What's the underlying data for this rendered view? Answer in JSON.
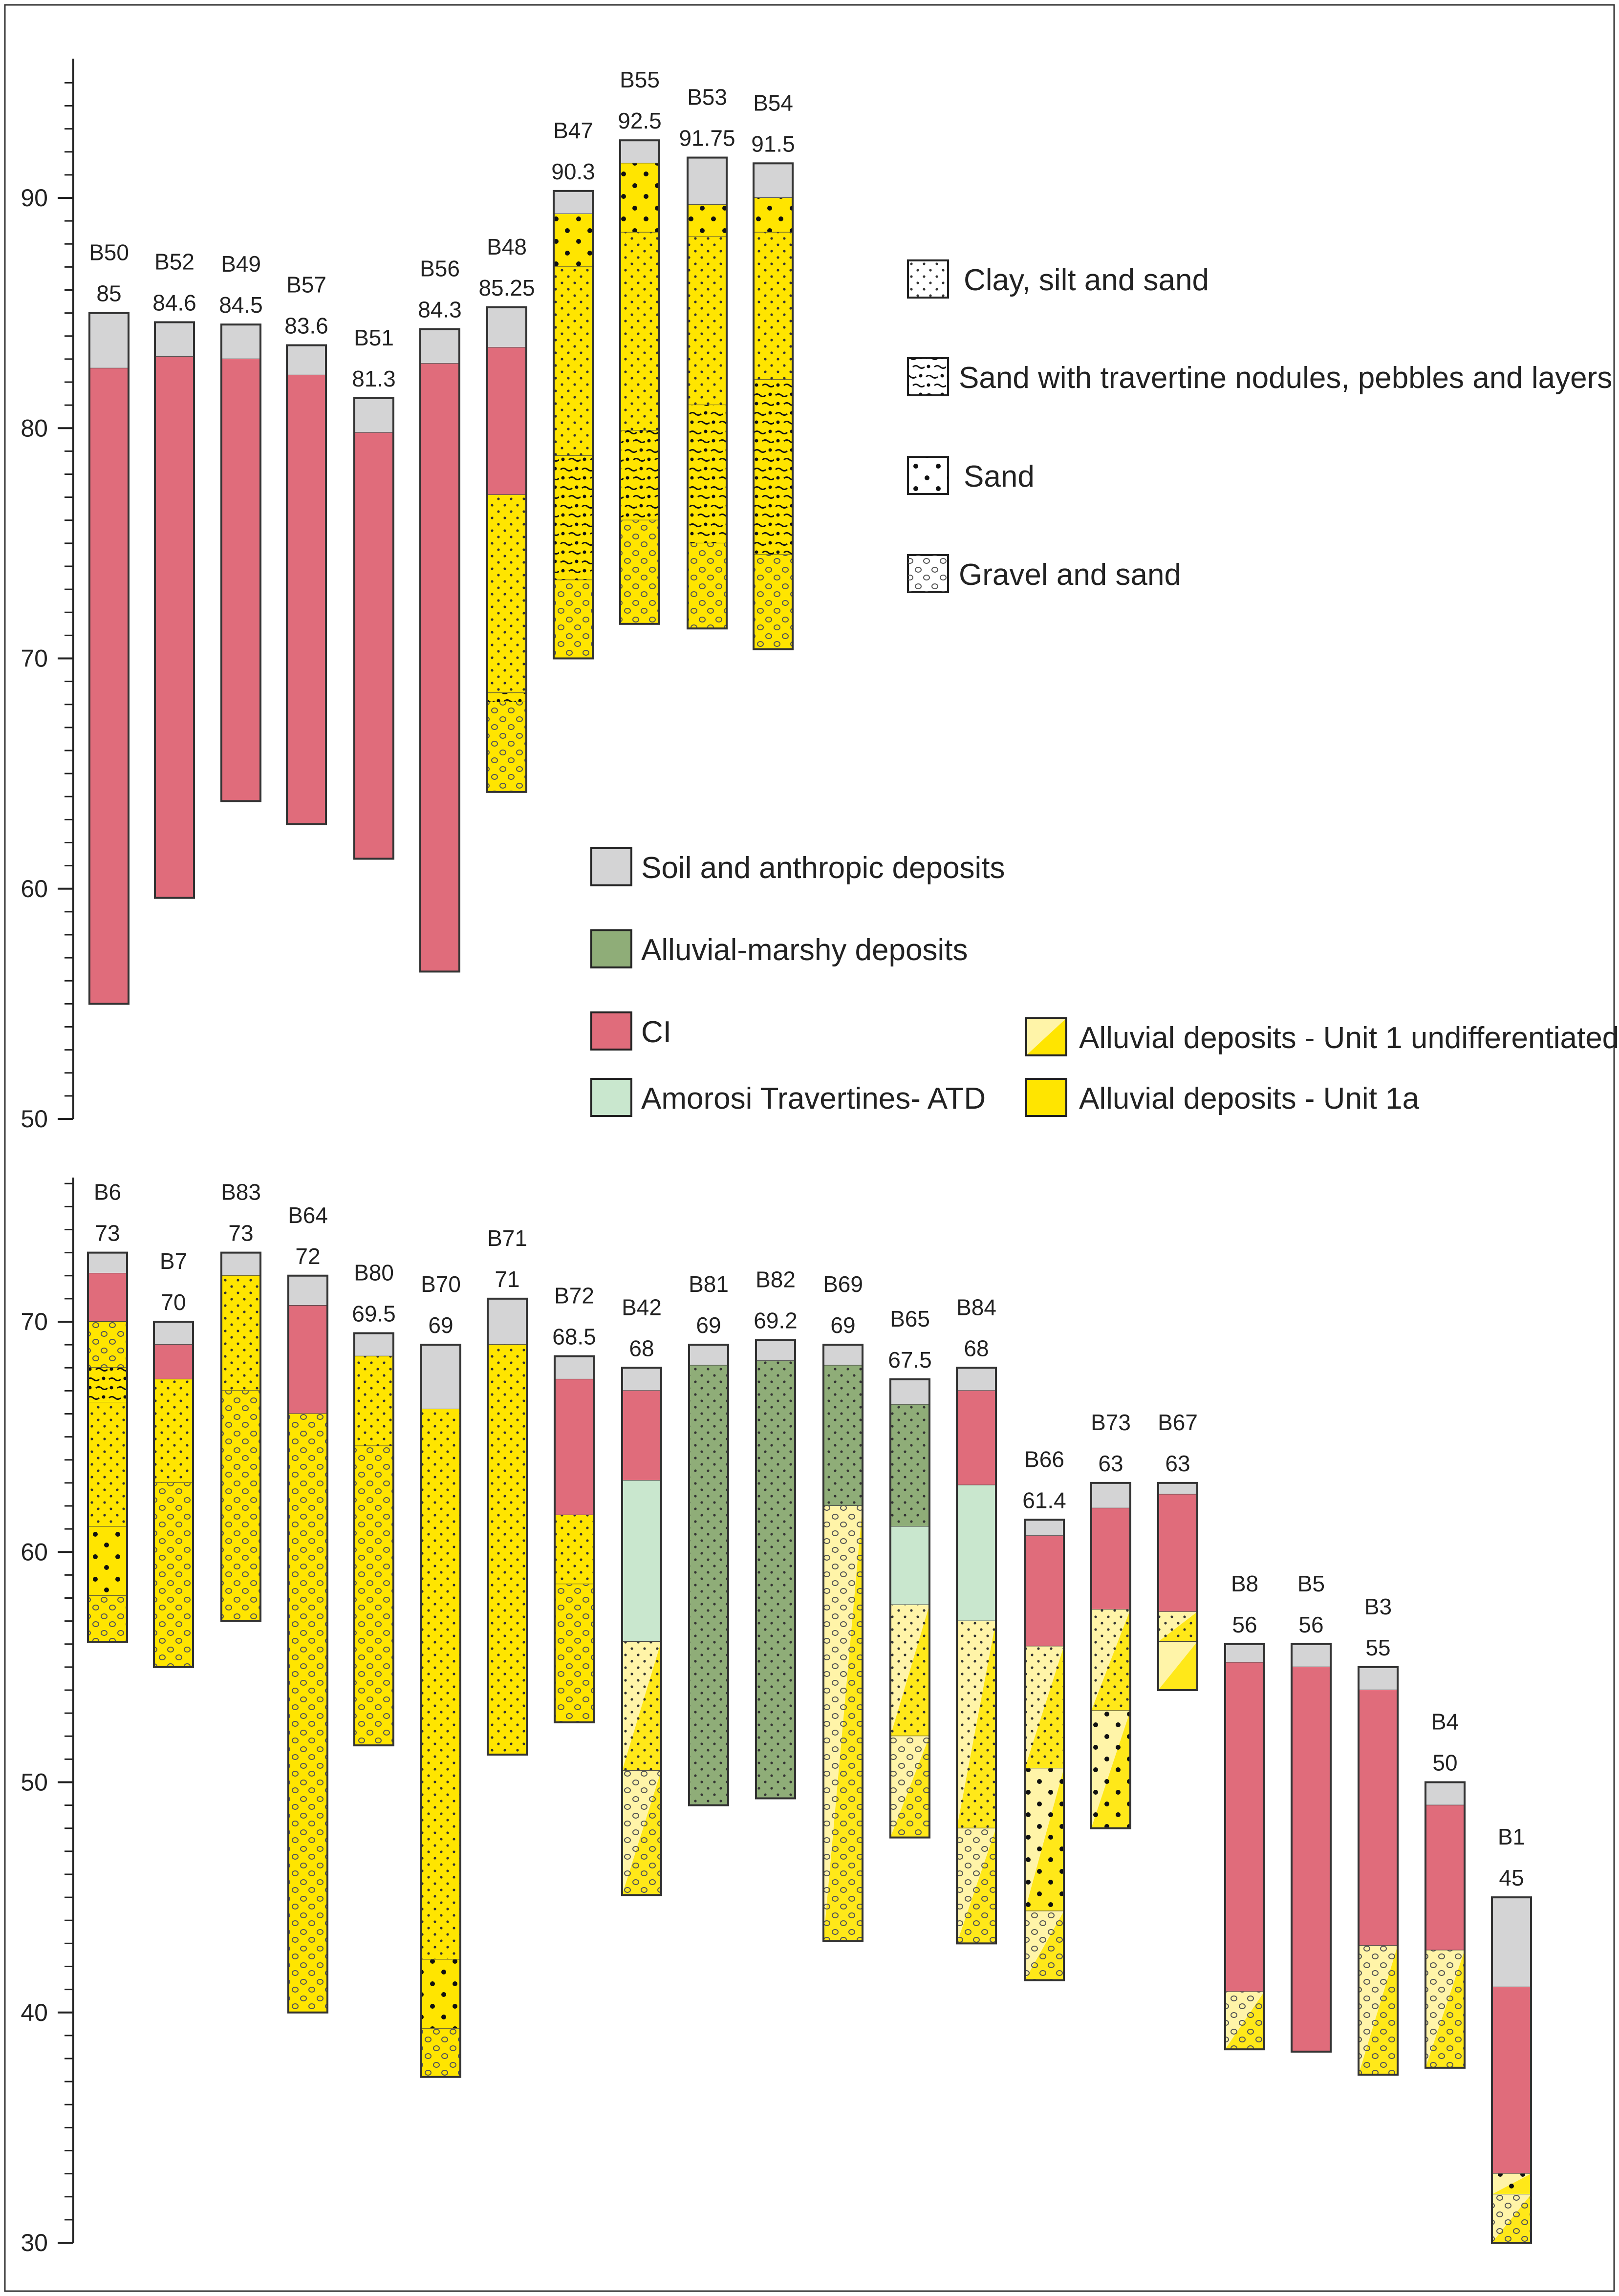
{
  "legend_lithology": [
    {
      "key": "clay",
      "label": "Clay, silt and sand"
    },
    {
      "key": "trav",
      "label": "Sand with travertine nodules, pebbles and layers"
    },
    {
      "key": "sand",
      "label": "Sand"
    },
    {
      "key": "gravel",
      "label": "Gravel and sand"
    }
  ],
  "legend_units": [
    {
      "key": "soil",
      "label": "Soil and anthropic deposits"
    },
    {
      "key": "marsh",
      "label": "Alluvial-marshy deposits"
    },
    {
      "key": "ci",
      "label": "CI"
    },
    {
      "key": "atd",
      "label": "Amorosi Travertines- ATD"
    },
    {
      "key": "undiff",
      "label": "Alluvial deposits - Unit 1 undifferentiated"
    },
    {
      "key": "u1a",
      "label": "Alluvial deposits - Unit 1a"
    }
  ],
  "colors": {
    "soil": "#d4d4d5",
    "ci": "#e06c7b",
    "marsh": "#8fad78",
    "atd": "#c9e7ce",
    "u1a": "#ffe500",
    "undiff": "#fff4a8",
    "frame": "#333333"
  },
  "chart_data": [
    {
      "id": "top-panel",
      "type": "stratigraphic-column",
      "ylim": [
        50,
        95
      ],
      "ytick_labels": [
        50,
        60,
        70,
        80,
        90
      ],
      "boreholes": [
        {
          "name": "B50",
          "elev": "85",
          "layers": [
            [
              85,
              82.6,
              "soil",
              ""
            ],
            [
              82.6,
              55,
              "ci",
              ""
            ]
          ]
        },
        {
          "name": "B52",
          "elev": "84.6",
          "layers": [
            [
              84.6,
              83.1,
              "soil",
              ""
            ],
            [
              83.1,
              59.6,
              "ci",
              ""
            ]
          ]
        },
        {
          "name": "B49",
          "elev": "84.5",
          "layers": [
            [
              84.5,
              83,
              "soil",
              ""
            ],
            [
              83,
              63.8,
              "ci",
              ""
            ]
          ]
        },
        {
          "name": "B57",
          "elev": "83.6",
          "layers": [
            [
              83.6,
              82.3,
              "soil",
              ""
            ],
            [
              82.3,
              62.8,
              "ci",
              ""
            ]
          ]
        },
        {
          "name": "B51",
          "elev": "81.3",
          "layers": [
            [
              81.3,
              79.8,
              "soil",
              ""
            ],
            [
              79.8,
              61.3,
              "ci",
              ""
            ]
          ]
        },
        {
          "name": "B56",
          "elev": "84.3",
          "layers": [
            [
              84.3,
              82.8,
              "soil",
              ""
            ],
            [
              82.8,
              56.4,
              "ci",
              ""
            ]
          ]
        },
        {
          "name": "B48",
          "elev": "85.25",
          "layers": [
            [
              85.25,
              83.5,
              "soil",
              ""
            ],
            [
              83.5,
              77.1,
              "ci",
              ""
            ],
            [
              77.1,
              68.5,
              "u1a",
              "clay"
            ],
            [
              68.5,
              68.1,
              "u1a",
              "trav"
            ],
            [
              68.1,
              64.2,
              "u1a",
              "gravel"
            ]
          ]
        },
        {
          "name": "B47",
          "elev": "90.3",
          "layers": [
            [
              90.3,
              89.3,
              "soil",
              ""
            ],
            [
              89.3,
              87,
              "u1a",
              "sand"
            ],
            [
              87,
              78.8,
              "u1a",
              "clay"
            ],
            [
              78.8,
              73.4,
              "u1a",
              "trav"
            ],
            [
              73.4,
              70,
              "u1a",
              "gravel"
            ]
          ]
        },
        {
          "name": "B55",
          "elev": "92.5",
          "layers": [
            [
              92.5,
              91.5,
              "soil",
              ""
            ],
            [
              91.5,
              88.5,
              "u1a",
              "sand"
            ],
            [
              88.5,
              79.9,
              "u1a",
              "clay"
            ],
            [
              79.9,
              76,
              "u1a",
              "trav"
            ],
            [
              76,
              71.5,
              "u1a",
              "gravel"
            ]
          ]
        },
        {
          "name": "B53",
          "elev": "91.75",
          "layers": [
            [
              91.75,
              89.7,
              "soil",
              ""
            ],
            [
              89.7,
              88.3,
              "u1a",
              "sand"
            ],
            [
              88.3,
              81,
              "u1a",
              "clay"
            ],
            [
              81,
              75,
              "u1a",
              "trav"
            ],
            [
              75,
              71.3,
              "u1a",
              "gravel"
            ]
          ]
        },
        {
          "name": "B54",
          "elev": "91.5",
          "layers": [
            [
              91.5,
              90,
              "soil",
              ""
            ],
            [
              90,
              88.5,
              "u1a",
              "sand"
            ],
            [
              88.5,
              82.1,
              "u1a",
              "clay"
            ],
            [
              82.1,
              74.5,
              "u1a",
              "trav"
            ],
            [
              74.5,
              70.4,
              "u1a",
              "gravel"
            ]
          ]
        }
      ]
    },
    {
      "id": "bottom-panel",
      "type": "stratigraphic-column",
      "ylim": [
        30,
        76
      ],
      "ytick_labels": [
        30,
        40,
        50,
        60,
        70
      ],
      "boreholes": [
        {
          "name": "B6",
          "elev": "73",
          "layers": [
            [
              73,
              72.1,
              "soil",
              ""
            ],
            [
              72.1,
              70,
              "ci",
              ""
            ],
            [
              70,
              68,
              "u1a",
              "gravel"
            ],
            [
              68,
              66.5,
              "u1a",
              "trav"
            ],
            [
              66.5,
              61.1,
              "u1a",
              "clay"
            ],
            [
              61.1,
              58.1,
              "u1a",
              "sand"
            ],
            [
              58.1,
              56.1,
              "u1a",
              "gravel"
            ]
          ]
        },
        {
          "name": "B7",
          "elev": "70",
          "layers": [
            [
              70,
              69,
              "soil",
              ""
            ],
            [
              69,
              67.5,
              "ci",
              ""
            ],
            [
              67.5,
              63,
              "u1a",
              "clay"
            ],
            [
              63,
              55,
              "u1a",
              "gravel"
            ]
          ]
        },
        {
          "name": "B83",
          "elev": "73",
          "layers": [
            [
              73,
              72,
              "soil",
              ""
            ],
            [
              72,
              67,
              "u1a",
              "clay"
            ],
            [
              67,
              57,
              "u1a",
              "gravel"
            ]
          ]
        },
        {
          "name": "B64",
          "elev": "72",
          "layers": [
            [
              72,
              70.7,
              "soil",
              ""
            ],
            [
              70.7,
              66,
              "ci",
              ""
            ],
            [
              66,
              40,
              "u1a",
              "gravel"
            ]
          ]
        },
        {
          "name": "B80",
          "elev": "69.5",
          "layers": [
            [
              69.5,
              68.5,
              "soil",
              ""
            ],
            [
              68.5,
              64.6,
              "u1a",
              "clay"
            ],
            [
              64.6,
              51.6,
              "u1a",
              "gravel"
            ]
          ]
        },
        {
          "name": "B70",
          "elev": "69",
          "layers": [
            [
              69,
              66.2,
              "soil",
              ""
            ],
            [
              66.2,
              42.3,
              "u1a",
              "clay"
            ],
            [
              42.3,
              39.3,
              "u1a",
              "sand"
            ],
            [
              39.3,
              37.2,
              "u1a",
              "gravel"
            ]
          ]
        },
        {
          "name": "B71",
          "elev": "71",
          "layers": [
            [
              71,
              69,
              "soil",
              ""
            ],
            [
              69,
              51.2,
              "u1a",
              "clay"
            ]
          ]
        },
        {
          "name": "B72",
          "elev": "68.5",
          "layers": [
            [
              68.5,
              67.5,
              "soil",
              ""
            ],
            [
              67.5,
              61.6,
              "ci",
              ""
            ],
            [
              61.6,
              58.6,
              "u1a",
              "clay"
            ],
            [
              58.6,
              52.6,
              "u1a",
              "gravel"
            ]
          ]
        },
        {
          "name": "B42",
          "elev": "68",
          "layers": [
            [
              68,
              67,
              "soil",
              ""
            ],
            [
              67,
              63.1,
              "ci",
              ""
            ],
            [
              63.1,
              56.1,
              "atd",
              ""
            ],
            [
              56.1,
              50.5,
              "undiff",
              "clay"
            ],
            [
              50.5,
              45.1,
              "undiff",
              "gravel"
            ]
          ]
        },
        {
          "name": "B81",
          "elev": "69",
          "layers": [
            [
              69,
              68.1,
              "soil",
              ""
            ],
            [
              68.1,
              49,
              "marsh",
              "clay"
            ]
          ]
        },
        {
          "name": "B82",
          "elev": "69.2",
          "layers": [
            [
              69.2,
              68.3,
              "soil",
              ""
            ],
            [
              68.3,
              49.3,
              "marsh",
              "clay"
            ]
          ]
        },
        {
          "name": "B69",
          "elev": "69",
          "layers": [
            [
              69,
              68.1,
              "soil",
              ""
            ],
            [
              68.1,
              62,
              "marsh",
              "clay"
            ],
            [
              62,
              43.1,
              "undiff",
              "gravel"
            ]
          ]
        },
        {
          "name": "B65",
          "elev": "67.5",
          "layers": [
            [
              67.5,
              66.4,
              "soil",
              ""
            ],
            [
              66.4,
              61.1,
              "marsh",
              "clay"
            ],
            [
              61.1,
              57.7,
              "atd",
              ""
            ],
            [
              57.7,
              52,
              "undiff",
              "clay"
            ],
            [
              52,
              47.6,
              "undiff",
              "gravel"
            ]
          ]
        },
        {
          "name": "B84",
          "elev": "68",
          "layers": [
            [
              68,
              67,
              "soil",
              ""
            ],
            [
              67,
              62.9,
              "ci",
              ""
            ],
            [
              62.9,
              57,
              "atd",
              ""
            ],
            [
              57,
              48,
              "undiff",
              "clay"
            ],
            [
              48,
              43,
              "undiff",
              "gravel"
            ]
          ]
        },
        {
          "name": "B66",
          "elev": "61.4",
          "layers": [
            [
              61.4,
              60.7,
              "soil",
              ""
            ],
            [
              60.7,
              55.9,
              "ci",
              ""
            ],
            [
              55.9,
              50.6,
              "undiff",
              "clay"
            ],
            [
              50.6,
              44.4,
              "undiff",
              "sand"
            ],
            [
              44.4,
              41.4,
              "undiff",
              "gravel"
            ]
          ]
        },
        {
          "name": "B73",
          "elev": "63",
          "layers": [
            [
              63,
              61.9,
              "soil",
              ""
            ],
            [
              61.9,
              57.5,
              "ci",
              ""
            ],
            [
              57.5,
              53.1,
              "undiff",
              "clay"
            ],
            [
              53.1,
              48,
              "undiff",
              "sand"
            ]
          ]
        },
        {
          "name": "B67",
          "elev": "63",
          "layers": [
            [
              63,
              62.5,
              "soil",
              ""
            ],
            [
              62.5,
              57.4,
              "ci",
              ""
            ],
            [
              57.4,
              56.1,
              "undiff",
              "clay"
            ],
            [
              56.1,
              54,
              "undiff",
              ""
            ]
          ]
        },
        {
          "name": "B8",
          "elev": "56",
          "layers": [
            [
              56,
              55.2,
              "soil",
              ""
            ],
            [
              55.2,
              40.9,
              "ci",
              ""
            ],
            [
              40.9,
              38.4,
              "undiff",
              "gravel"
            ]
          ]
        },
        {
          "name": "B5",
          "elev": "56",
          "layers": [
            [
              56,
              55,
              "soil",
              ""
            ],
            [
              55,
              38.3,
              "ci",
              ""
            ]
          ]
        },
        {
          "name": "B3",
          "elev": "55",
          "layers": [
            [
              55,
              54,
              "soil",
              ""
            ],
            [
              54,
              42.9,
              "ci",
              ""
            ],
            [
              42.9,
              37.3,
              "undiff",
              "gravel"
            ]
          ]
        },
        {
          "name": "B4",
          "elev": "50",
          "layers": [
            [
              50,
              49,
              "soil",
              ""
            ],
            [
              49,
              42.7,
              "ci",
              ""
            ],
            [
              42.7,
              37.6,
              "undiff",
              "gravel"
            ]
          ]
        },
        {
          "name": "B1",
          "elev": "45",
          "layers": [
            [
              45,
              41.1,
              "soil",
              ""
            ],
            [
              41.1,
              33,
              "ci",
              ""
            ],
            [
              33,
              32.1,
              "undiff",
              "sand"
            ],
            [
              32.1,
              30,
              "undiff",
              "gravel"
            ]
          ]
        }
      ]
    }
  ]
}
